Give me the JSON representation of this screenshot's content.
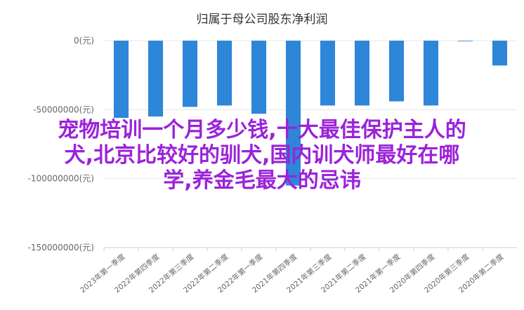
{
  "chart_data": {
    "type": "bar",
    "title": "归属于母公司股东净利润",
    "categories": [
      "2023年第一季度",
      "2022年第四季度",
      "2022年第三季度",
      "2022年第二季度",
      "2022年第一季度",
      "2021年第四季度",
      "2021年第三季度",
      "2021年第二季度",
      "2021年第一季度",
      "2020年第四季度",
      "2020年第三季度",
      "2020年第二季度"
    ],
    "series": [
      {
        "values": [
          -56000000,
          -55000000,
          -48000000,
          -47000000,
          -53000000,
          -105000000,
          -47000000,
          -47000000,
          -44000000,
          -47000000,
          -100000,
          -18000000
        ]
      }
    ],
    "y_ticks": [
      "0(元)",
      "-50000000(元)",
      "-100000000(元)",
      "-150000000(元)"
    ],
    "ylim": [
      -150000000,
      0
    ],
    "grid": true,
    "bar_color": "#2e86d8"
  },
  "overlay": {
    "line1": "宠物培训一个月多少钱,十大最佳保护主人的",
    "line2": "犬,北京比较好的驯犬,国内训犬师最好在哪",
    "line3": "学,养金毛最大的忌讳"
  }
}
